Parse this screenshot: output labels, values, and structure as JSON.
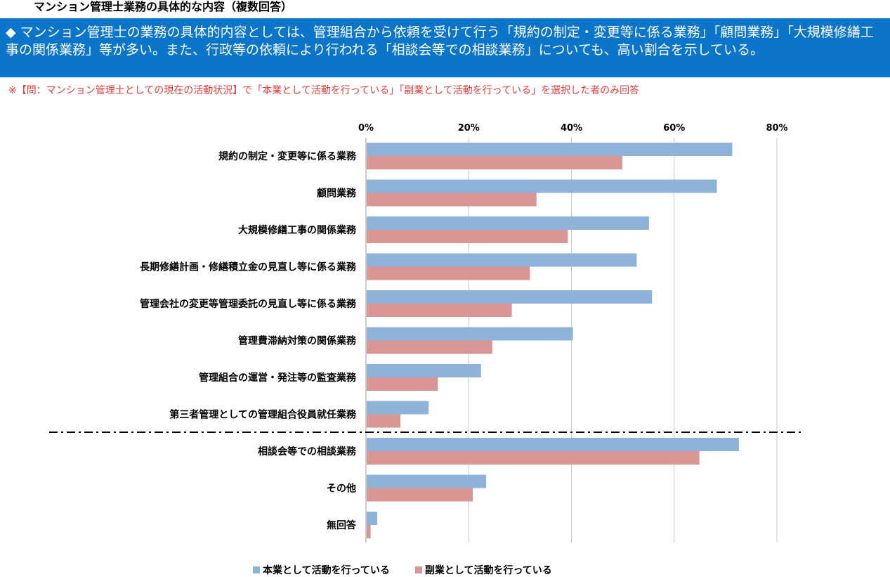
{
  "page": {
    "title": "マンション管理士業務の具体的な内容（複数回答）",
    "summary": "◆ マンション管理士の業務の具体的内容としては、管理組合から依頼を受けて行う「規約の制定・変更等に係る業務」「顧問業務」「大規模修繕工事の関係業務」等が多い。また、行政等の依頼により行われる「相談会等での相談業務」についても、高い割合を示している。",
    "note": "※【問：マンション管理士としての現在の活動状況】で「本業として活動を行っている」「副業として活動を行っている」を選択した者のみ回答"
  },
  "chart_data": {
    "type": "bar",
    "orientation": "horizontal",
    "categories": [
      "規約の制定・変更等に係る業務",
      "顧問業務",
      "大規模修繕工事の関係業務",
      "長期修繕計画・修繕積立金の見直し等に係る業務",
      "管理会社の変更等管理委託の見直し等に係る業務",
      "管理費滞納対策の関係業務",
      "管理組合の運営・発注等の監査業務",
      "第三者管理としての管理組合役員就任業務",
      "相談会等での相談業務",
      "その他",
      "無回答"
    ],
    "series": [
      {
        "name": "本業として活動を行っている",
        "color": "#8fb2d9",
        "values": [
          71.3,
          68.3,
          55.1,
          52.7,
          55.7,
          40.3,
          22.4,
          12.2,
          72.6,
          23.4,
          2.2
        ]
      },
      {
        "name": "副業として活動を行っている",
        "color": "#d99694",
        "values": [
          49.9,
          33.2,
          39.3,
          31.9,
          28.4,
          24.6,
          14.0,
          6.7,
          64.9,
          20.8,
          0.9
        ]
      }
    ],
    "x_ticks": [
      "0%",
      "20%",
      "40%",
      "60%",
      "80%"
    ],
    "xlim": [
      0,
      80
    ],
    "grid": true,
    "axis_position": "top",
    "divider_after_category_index": 7,
    "legend_position": "bottom"
  }
}
